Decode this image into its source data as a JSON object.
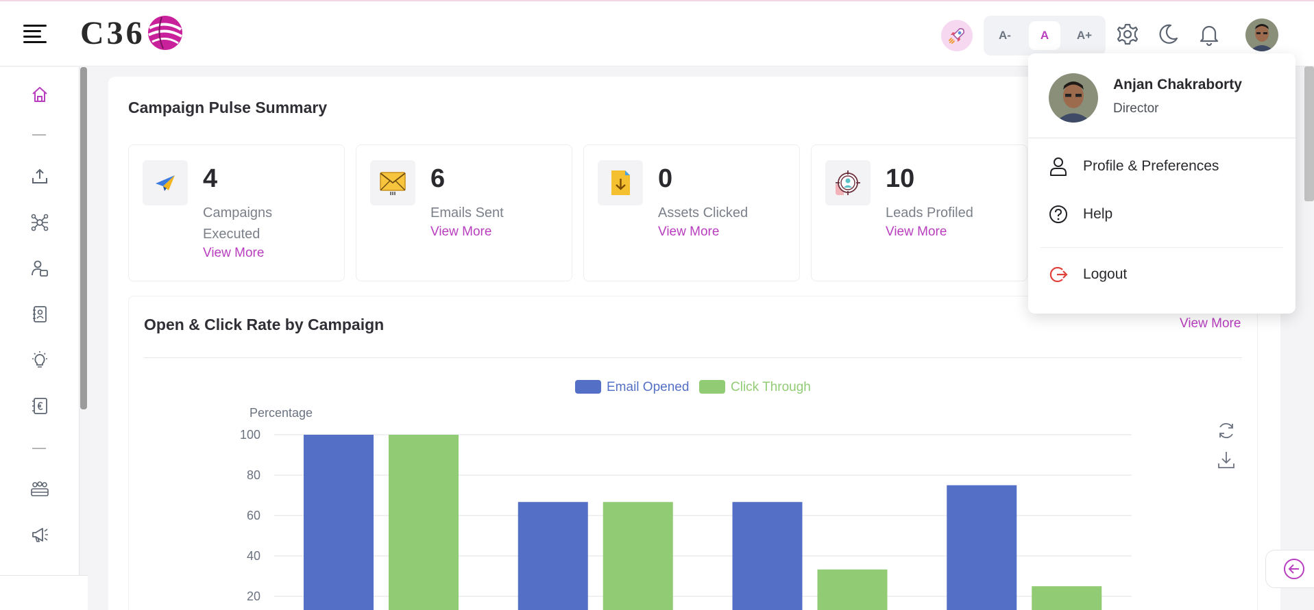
{
  "header": {
    "logo_text": "C36",
    "font_controls": {
      "decrease": "A-",
      "normal": "A",
      "increase": "A+"
    }
  },
  "summary": {
    "title": "Campaign Pulse Summary",
    "kpis": [
      {
        "value": "4",
        "label": "Campaigns Executed",
        "link": "View More",
        "icon": "paper-plane-icon"
      },
      {
        "value": "6",
        "label": "Emails Sent",
        "link": "View More",
        "icon": "envelope-icon"
      },
      {
        "value": "0",
        "label": "Assets Clicked",
        "link": "View More",
        "icon": "download-file-icon"
      },
      {
        "value": "10",
        "label": "Leads Profiled",
        "link": "View More",
        "icon": "target-person-icon"
      }
    ]
  },
  "chart_section": {
    "title": "Open & Click Rate by Campaign",
    "view_more": "View More"
  },
  "chart_data": {
    "type": "bar",
    "ylabel": "Percentage",
    "ylim": [
      0,
      100
    ],
    "yticks": [
      20,
      40,
      60,
      80,
      100
    ],
    "grid": true,
    "legend_position": "top-center",
    "categories": [
      "",
      "",
      "",
      ""
    ],
    "series": [
      {
        "name": "Email Opened",
        "color": "#5470c6",
        "values": [
          100,
          66.7,
          66.7,
          75
        ]
      },
      {
        "name": "Click Through",
        "color": "#91cc75",
        "values": [
          100,
          66.7,
          33.3,
          25
        ]
      }
    ]
  },
  "profile_menu": {
    "name": "Anjan Chakraborty",
    "role": "Director",
    "items": [
      {
        "label": "Profile & Preferences",
        "icon": "user-icon"
      },
      {
        "label": "Help",
        "icon": "help-circle-icon"
      },
      {
        "label": "Logout",
        "icon": "logout-icon"
      }
    ]
  },
  "colors": {
    "accent": "#b83dbf",
    "bar_blue": "#5470c6",
    "bar_green": "#91cc75"
  }
}
